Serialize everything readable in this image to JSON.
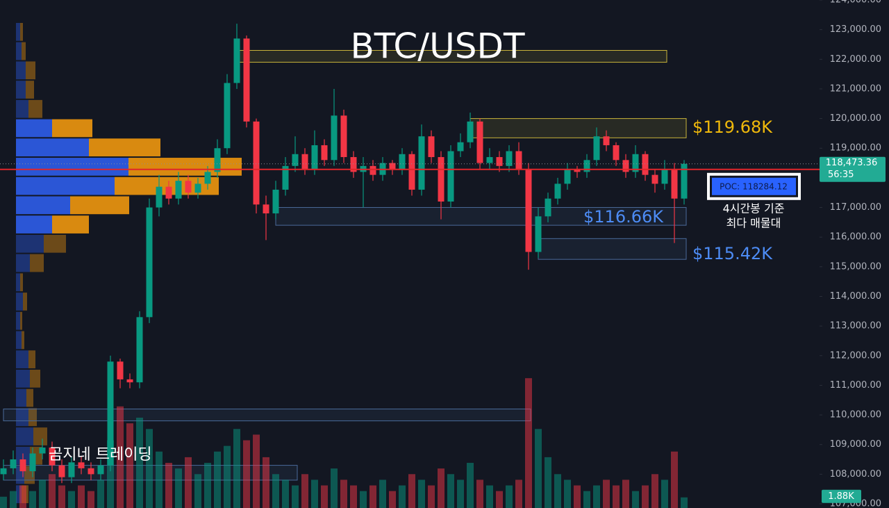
{
  "chart_data": {
    "type": "candlestick",
    "title": "BTC/USDT",
    "watermark": "곰지네 트레이딩",
    "up_color": "#089981",
    "down_color": "#f23645",
    "open": [
      108000,
      108200,
      108500,
      108100,
      108700,
      108900,
      108300,
      107900,
      108400,
      108200,
      108000,
      108300,
      111800,
      111200,
      111100,
      113300,
      117000,
      117700,
      117300,
      117900,
      117500,
      117800,
      118200,
      119000,
      121200,
      122700,
      119900,
      117100,
      116800,
      117600,
      118400,
      118800,
      118300,
      119100,
      118600,
      120100,
      118700,
      118200,
      118400,
      118100,
      118500,
      118300,
      118800,
      117600,
      119400,
      118700,
      117200,
      118900,
      119200,
      119900,
      118500,
      118700,
      118400,
      118900,
      118300,
      115500,
      116700,
      117300,
      117800,
      118300,
      118200,
      118600,
      119400,
      119100,
      118600,
      118200,
      118800,
      118100,
      117800,
      118300,
      117300
    ],
    "high": [
      108500,
      108800,
      108700,
      108900,
      109200,
      109100,
      108500,
      108600,
      108600,
      108400,
      108500,
      112000,
      111900,
      111400,
      113500,
      117300,
      118100,
      117900,
      118200,
      118100,
      118000,
      118400,
      119300,
      121500,
      123200,
      122800,
      120000,
      117400,
      117900,
      118700,
      119400,
      119000,
      119600,
      119300,
      121000,
      120300,
      118900,
      118700,
      118600,
      118700,
      118600,
      119000,
      118900,
      119800,
      119600,
      118900,
      119100,
      119500,
      120200,
      120000,
      119000,
      118900,
      119100,
      119200,
      118500,
      117000,
      117500,
      118000,
      118500,
      118400,
      118800,
      119700,
      119600,
      119200,
      118800,
      119100,
      118900,
      118300,
      118600,
      118500,
      118600
    ],
    "low": [
      107800,
      108000,
      107900,
      107900,
      108500,
      108100,
      107700,
      107700,
      108000,
      107800,
      107800,
      108100,
      110900,
      110900,
      110900,
      113100,
      116700,
      117100,
      117100,
      117300,
      117300,
      117600,
      118000,
      118800,
      121000,
      119700,
      116800,
      115900,
      116600,
      117400,
      118200,
      118100,
      118100,
      118400,
      118400,
      118500,
      118000,
      117000,
      117900,
      117900,
      118100,
      118100,
      117400,
      117400,
      118500,
      116600,
      117000,
      118700,
      119000,
      118300,
      118300,
      118200,
      118200,
      118100,
      114900,
      115300,
      116500,
      117100,
      117600,
      118000,
      118000,
      118400,
      118900,
      118400,
      118000,
      118000,
      117900,
      117500,
      117600,
      115800,
      117100
    ],
    "close": [
      108200,
      108500,
      108100,
      108700,
      108900,
      108300,
      107900,
      108400,
      108200,
      108000,
      108300,
      111800,
      111200,
      111100,
      113300,
      117000,
      117700,
      117300,
      117900,
      117500,
      117800,
      118200,
      119000,
      121200,
      122700,
      119900,
      117100,
      116800,
      117600,
      118400,
      118800,
      118300,
      119100,
      118600,
      120100,
      118700,
      118200,
      118400,
      118100,
      118500,
      118300,
      118800,
      117600,
      119400,
      118700,
      117200,
      118900,
      119200,
      119900,
      118500,
      118700,
      118400,
      118900,
      118300,
      115500,
      116700,
      117300,
      117800,
      118300,
      118200,
      118600,
      119400,
      119100,
      118600,
      118200,
      118800,
      118100,
      117800,
      118300,
      117300,
      118473.36
    ],
    "volume": [
      2,
      3,
      4,
      3,
      5,
      6,
      4,
      3,
      4,
      3,
      5,
      12,
      18,
      15,
      16,
      14,
      10,
      8,
      7,
      9,
      6,
      8,
      10,
      11,
      14,
      12,
      13,
      9,
      6,
      5,
      4,
      6,
      5,
      4,
      7,
      5,
      4,
      3,
      4,
      5,
      3,
      4,
      6,
      5,
      4,
      7,
      6,
      5,
      8,
      5,
      4,
      3,
      4,
      5,
      23,
      14,
      9,
      6,
      5,
      4,
      3,
      4,
      5,
      4,
      5,
      3,
      4,
      6,
      5,
      10,
      1.88
    ],
    "volume_label": "1.88K",
    "vlim": [
      0,
      90
    ],
    "ylim": [
      106860,
      124000
    ],
    "yticks": [
      {
        "value": 107000,
        "label": "107,000.00"
      },
      {
        "value": 108000,
        "label": "108,000.00"
      },
      {
        "value": 109000,
        "label": "109,000.00"
      },
      {
        "value": 110000,
        "label": "110,000.00"
      },
      {
        "value": 111000,
        "label": "111,000.00"
      },
      {
        "value": 112000,
        "label": "112,000.00"
      },
      {
        "value": 113000,
        "label": "113,000.00"
      },
      {
        "value": 114000,
        "label": "114,000.00"
      },
      {
        "value": 115000,
        "label": "115,000.00"
      },
      {
        "value": 116000,
        "label": "116,000.00"
      },
      {
        "value": 117000,
        "label": "117,000.00"
      },
      {
        "value": 118000,
        "label": "118,000.00"
      },
      {
        "value": 119000,
        "label": "119,000.00"
      },
      {
        "value": 120000,
        "label": "120,000.00"
      },
      {
        "value": 121000,
        "label": "121,000.00"
      },
      {
        "value": 122000,
        "label": "122,000.00"
      },
      {
        "value": 123000,
        "label": "123,000.00"
      },
      {
        "value": 124000,
        "label": "124,000.00"
      }
    ],
    "last_price": {
      "value": 118473.36,
      "label": "118,473.36"
    },
    "countdown": "56:35",
    "poc": {
      "value": 118284.12,
      "label": "POC: 118284.12"
    },
    "poc_note": [
      "4시간봉 기준",
      "최다 매물대"
    ],
    "volume_profile": {
      "bins": [
        107000,
        107650,
        108300,
        108950,
        109600,
        110250,
        110900,
        111550,
        112200,
        112850,
        113500,
        114150,
        114800,
        115450,
        116100,
        116750,
        117400,
        118050,
        118700,
        119350,
        120000,
        120650,
        121300,
        121950,
        122600,
        123250
      ],
      "buy": [
        8,
        12,
        20,
        25,
        18,
        15,
        20,
        18,
        8,
        6,
        10,
        6,
        20,
        40,
        52,
        78,
        142,
        162,
        105,
        52,
        18,
        14,
        14,
        8,
        6
      ],
      "sell": [
        10,
        15,
        18,
        20,
        12,
        10,
        15,
        10,
        4,
        3,
        6,
        4,
        20,
        32,
        53,
        85,
        150,
        163,
        103,
        58,
        20,
        12,
        14,
        6,
        4
      ],
      "value_area": [
        116100,
        120000
      ],
      "buy_color": "#2b56d6",
      "sell_color": "#d98a10"
    },
    "zones": [
      {
        "lo": 121900,
        "hi": 122300,
        "from": 24,
        "to": 68,
        "color": "#c9b43a"
      },
      {
        "lo": 119350,
        "hi": 120000,
        "from": 48,
        "to": 70,
        "color": "#c9b43a"
      },
      {
        "lo": 116400,
        "hi": 117000,
        "from": 28,
        "to": 70,
        "color": "#4a6a9a"
      },
      {
        "lo": 115250,
        "hi": 115950,
        "from": 55,
        "to": 70,
        "color": "#4a6a9a"
      },
      {
        "lo": 109800,
        "hi": 110200,
        "from": 0,
        "to": 54,
        "color": "#4a6a9a"
      },
      {
        "lo": 107800,
        "hi": 108300,
        "from": 0,
        "to": 30,
        "color": "#4a6a9a"
      }
    ],
    "level_labels": [
      {
        "value": 119680,
        "label": "$119.68K",
        "color": "#f0b90b",
        "position": "outside"
      },
      {
        "value": 116660,
        "label": "$116.66K",
        "color": "#4d8cf5",
        "position": "inside"
      },
      {
        "value": 115420,
        "label": "$115.42K",
        "color": "#4d8cf5",
        "position": "outside"
      }
    ]
  }
}
